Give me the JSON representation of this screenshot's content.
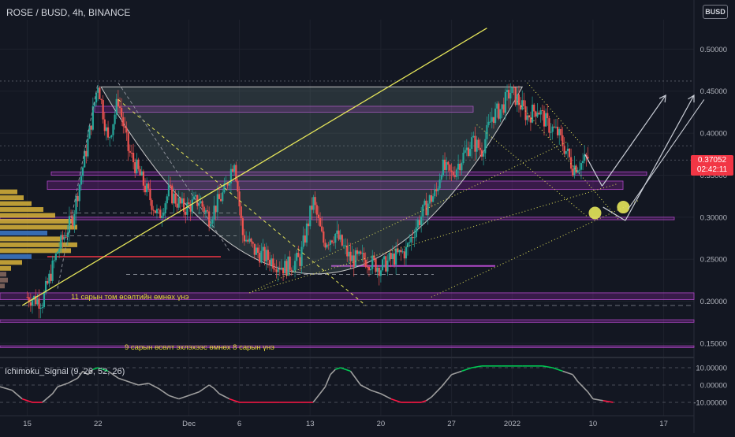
{
  "header": {
    "title": "ROSE / BUSD, 4h, BINANCE",
    "currency": "BUSD"
  },
  "last_price": {
    "value": "0.37052",
    "countdown": "02:42:11"
  },
  "annotations": {
    "text_november": "11 сарын том өсөлтийн өмнөх үнэ",
    "text_september": "9 сарын өсөлт эхлэхээс өмнөх 8 сарын үнэ"
  },
  "indicator": {
    "name": "Ichimoku_Signal (9, 26, 52, 26)"
  },
  "colors": {
    "background": "#131722",
    "up_candle": "#26a69a",
    "down_candle": "#ef5350",
    "trendline": "#e5e55a",
    "zone": "#9c27b0",
    "signal_high": "#00c853",
    "signal_low": "#ff1744",
    "signal_mid": "#9e9e9e"
  },
  "chart_data": {
    "type": "candlestick",
    "symbol": "ROSE / BUSD",
    "interval": "4h",
    "exchange": "BINANCE",
    "yticks": [
      "0.50000",
      "0.45000",
      "0.40000",
      "0.35000",
      "0.30000",
      "0.25000",
      "0.20000",
      "0.15000"
    ],
    "ytick_values": [
      0.5,
      0.45,
      0.4,
      0.35,
      0.3,
      0.25,
      0.2,
      0.15
    ],
    "ylim": [
      0.135,
      0.535
    ],
    "xticks": [
      "15",
      "22",
      "Dec",
      "6",
      "13",
      "20",
      "27",
      "2022",
      "10",
      "17"
    ],
    "xtick_days": [
      0,
      7,
      16,
      21,
      28,
      35,
      42,
      48,
      56,
      63
    ],
    "xlim_days": [
      -2.7,
      66
    ],
    "price_path": [
      [
        0,
        0.205
      ],
      [
        1.5,
        0.2
      ],
      [
        3,
        0.26
      ],
      [
        4.5,
        0.3
      ],
      [
        6,
        0.39
      ],
      [
        7,
        0.46
      ],
      [
        8,
        0.39
      ],
      [
        9,
        0.44
      ],
      [
        10,
        0.38
      ],
      [
        11.5,
        0.34
      ],
      [
        13,
        0.3
      ],
      [
        14,
        0.33
      ],
      [
        15.5,
        0.31
      ],
      [
        17,
        0.32
      ],
      [
        18,
        0.3
      ],
      [
        19.5,
        0.33
      ],
      [
        20.5,
        0.37
      ],
      [
        21.3,
        0.28
      ],
      [
        22.5,
        0.26
      ],
      [
        24,
        0.25
      ],
      [
        25.5,
        0.24
      ],
      [
        27,
        0.25
      ],
      [
        28.3,
        0.32
      ],
      [
        29.3,
        0.27
      ],
      [
        30.5,
        0.28
      ],
      [
        32,
        0.25
      ],
      [
        33.5,
        0.25
      ],
      [
        35,
        0.24
      ],
      [
        36,
        0.25
      ],
      [
        37.5,
        0.26
      ],
      [
        38.5,
        0.29
      ],
      [
        39.8,
        0.32
      ],
      [
        40.5,
        0.33
      ],
      [
        41,
        0.36
      ],
      [
        42,
        0.35
      ],
      [
        43,
        0.37
      ],
      [
        44,
        0.39
      ],
      [
        45,
        0.38
      ],
      [
        46,
        0.42
      ],
      [
        47,
        0.43
      ],
      [
        47.8,
        0.45
      ],
      [
        48.5,
        0.44
      ],
      [
        49.5,
        0.42
      ],
      [
        50.5,
        0.43
      ],
      [
        51.5,
        0.41
      ],
      [
        52.5,
        0.4
      ],
      [
        53.3,
        0.38
      ],
      [
        54,
        0.36
      ],
      [
        55,
        0.365
      ],
      [
        55.5,
        0.37052
      ]
    ],
    "signal": {
      "yticks": [
        "10.00000",
        "0.00000",
        "-10.00000"
      ],
      "ytick_values": [
        10,
        0,
        -10
      ],
      "ylim": [
        -15,
        15
      ],
      "path": [
        [
          -2.7,
          -1
        ],
        [
          -1.5,
          -3
        ],
        [
          -0.5,
          -8
        ],
        [
          0.5,
          -10
        ],
        [
          1.5,
          -10
        ],
        [
          2.5,
          -5
        ],
        [
          3,
          -1
        ],
        [
          4,
          1
        ],
        [
          5,
          4
        ],
        [
          5.5,
          8
        ],
        [
          6,
          6
        ],
        [
          6.5,
          9
        ],
        [
          7,
          10
        ],
        [
          8,
          8
        ],
        [
          9,
          4
        ],
        [
          10,
          2
        ],
        [
          11,
          0
        ],
        [
          12,
          1
        ],
        [
          13,
          -2
        ],
        [
          14,
          -6
        ],
        [
          15,
          -8
        ],
        [
          16,
          -6
        ],
        [
          17,
          -4
        ],
        [
          18,
          0
        ],
        [
          18.5,
          -2
        ],
        [
          19,
          -5
        ],
        [
          20,
          -8
        ],
        [
          21,
          -10
        ],
        [
          23,
          -10
        ],
        [
          25,
          -10
        ],
        [
          27,
          -10
        ],
        [
          28.3,
          -10
        ],
        [
          29.5,
          -1
        ],
        [
          30,
          6
        ],
        [
          30.5,
          9
        ],
        [
          31,
          10
        ],
        [
          32,
          8
        ],
        [
          33,
          0
        ],
        [
          34,
          -3
        ],
        [
          35,
          -5
        ],
        [
          36,
          -8
        ],
        [
          37,
          -10
        ],
        [
          38,
          -10
        ],
        [
          39,
          -10
        ],
        [
          39.5,
          -9
        ],
        [
          40,
          -7
        ],
        [
          41,
          -1
        ],
        [
          42,
          6
        ],
        [
          43,
          8
        ],
        [
          44,
          10
        ],
        [
          45,
          11
        ],
        [
          47,
          11
        ],
        [
          49,
          11
        ],
        [
          51,
          11
        ],
        [
          52,
          10
        ],
        [
          53,
          8
        ],
        [
          54,
          6
        ],
        [
          54.5,
          2
        ],
        [
          55,
          -1
        ],
        [
          55.5,
          -4
        ],
        [
          56,
          -8
        ],
        [
          57,
          -9
        ],
        [
          58,
          -10
        ]
      ]
    },
    "zones": [
      {
        "from": 0.425,
        "to": 0.432
      },
      {
        "from": 0.333,
        "to": 0.343
      },
      {
        "from": 0.202,
        "to": 0.21
      },
      {
        "from": 0.35,
        "to": 0.354
      },
      {
        "from": 0.297,
        "to": 0.3
      },
      {
        "from": 0.175,
        "to": 0.178
      },
      {
        "from": 0.145,
        "to": 0.147
      }
    ]
  }
}
